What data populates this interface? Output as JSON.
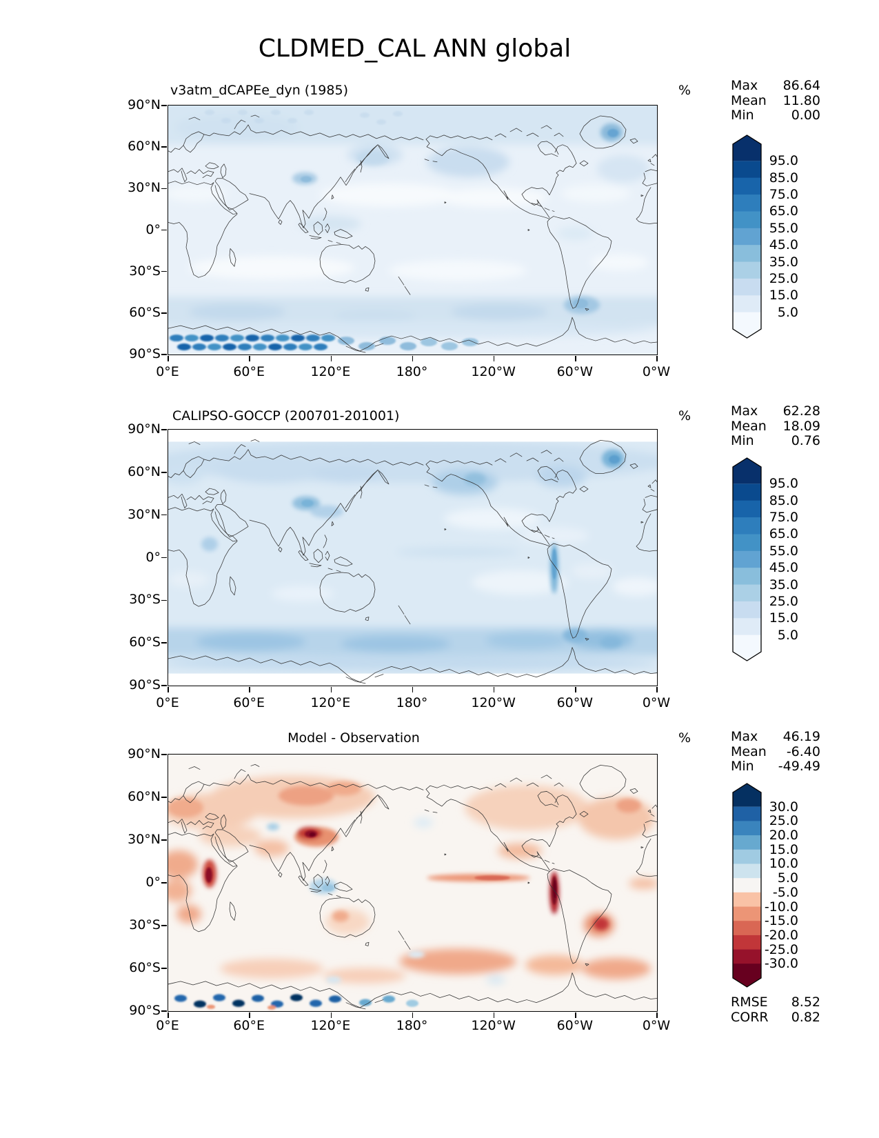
{
  "figure": {
    "title": "CLDMED_CAL ANN global"
  },
  "axes": {
    "yticks": [
      "90°N",
      "60°N",
      "30°N",
      "0°",
      "30°S",
      "60°S",
      "90°S"
    ],
    "xticks": [
      "0°E",
      "60°E",
      "120°E",
      "180°",
      "120°W",
      "60°W",
      "0°W"
    ]
  },
  "panels": [
    {
      "title": "v3atm_dCAPEe_dyn (1985)",
      "unit": "%",
      "stats": {
        "max_label": "Max",
        "max": "86.64",
        "mean_label": "Mean",
        "mean": "11.80",
        "min_label": "Min",
        "min": "0.00"
      }
    },
    {
      "title": "CALIPSO-GOCCP (200701-201001)",
      "unit": "%",
      "stats": {
        "max_label": "Max",
        "max": "62.28",
        "mean_label": "Mean",
        "mean": "18.09",
        "min_label": "Min",
        "min": "0.76"
      }
    },
    {
      "title": "Model - Observation",
      "unit": "%",
      "stats": {
        "max_label": "Max",
        "max": "46.19",
        "mean_label": "Mean",
        "mean": "-6.40",
        "min_label": "Min",
        "min": "-49.49"
      },
      "extra": {
        "rmse_label": "RMSE",
        "rmse": "8.52",
        "corr_label": "CORR",
        "corr": "0.82"
      }
    }
  ],
  "colorbars": [
    {
      "ticks": [
        "95.0",
        "85.0",
        "75.0",
        "65.0",
        "55.0",
        "45.0",
        "35.0",
        "25.0",
        "15.0",
        "5.0"
      ],
      "colors": [
        "#08306b",
        "#0a4a8e",
        "#1864aa",
        "#2e7ebc",
        "#4292c6",
        "#61a3d2",
        "#89bedc",
        "#abd0e6",
        "#c8dcf0",
        "#dfebf7",
        "#f4f9fe"
      ]
    },
    {
      "ticks": [
        "95.0",
        "85.0",
        "75.0",
        "65.0",
        "55.0",
        "45.0",
        "35.0",
        "25.0",
        "15.0",
        "5.0"
      ],
      "colors": [
        "#08306b",
        "#0a4a8e",
        "#1864aa",
        "#2e7ebc",
        "#4292c6",
        "#61a3d2",
        "#89bedc",
        "#abd0e6",
        "#c8dcf0",
        "#dfebf7",
        "#f4f9fe"
      ]
    },
    {
      "ticks": [
        "30.0",
        "25.0",
        "20.0",
        "15.0",
        "10.0",
        "5.0",
        "-5.0",
        "-10.0",
        "-15.0",
        "-20.0",
        "-25.0",
        "-30.0"
      ],
      "colors": [
        "#053061",
        "#1f61a5",
        "#3a84bd",
        "#67a9cf",
        "#a0cbe2",
        "#cde3ee",
        "#f7f5f3",
        "#f9c2a6",
        "#ec9576",
        "#d96754",
        "#c13639",
        "#96122b",
        "#67001f"
      ]
    }
  ],
  "chart_data": {
    "type": "heatmap",
    "subtype": "filled-contour global latitude-longitude maps (3 panels)",
    "title": "CLDMED_CAL ANN global",
    "units": "%",
    "lat_ticks": [
      "90°N",
      "60°N",
      "30°N",
      "0°",
      "30°S",
      "60°S",
      "90°S"
    ],
    "lon_ticks": [
      "0°E",
      "60°E",
      "120°E",
      "180°",
      "120°W",
      "60°W",
      "0°W"
    ],
    "panels": [
      {
        "name": "v3atm_dCAPEe_dyn (1985)",
        "role": "model",
        "colormap": "Blues",
        "contour_levels": [
          5,
          15,
          25,
          35,
          45,
          55,
          65,
          75,
          85,
          95
        ],
        "stats": {
          "max": 86.64,
          "mean": 11.8,
          "min": 0.0
        },
        "features": "light blue cloud fraction over most oceans; whiter subtropics; darker blue spots over Greenland, Tibet, Patagonia; speckled dark-blue pattern over East Antarctica"
      },
      {
        "name": "CALIPSO-GOCCP (200701-201001)",
        "role": "observation",
        "colormap": "Blues",
        "contour_levels": [
          5,
          15,
          25,
          35,
          45,
          55,
          65,
          75,
          85,
          95
        ],
        "stats": {
          "max": 62.28,
          "mean": 18.09,
          "min": 0.76
        },
        "features": "smooth moderate cloud fraction; strong Southern-Ocean band near 60S; darker Greenland, Tibet, Gulf of Alaska and narrow Andes stripe; no data poleward of ~82°"
      },
      {
        "name": "Model - Observation",
        "role": "difference",
        "colormap": "RdBu",
        "contour_levels": [
          -30,
          -25,
          -20,
          -15,
          -10,
          -5,
          5,
          10,
          15,
          20,
          25,
          30
        ],
        "stats": {
          "max": 46.19,
          "mean": -6.4,
          "min": -49.49,
          "rmse": 8.52,
          "corr": 0.82
        },
        "features": "widespread negative (red/orange) bias, deepest over Tibet/China, East Africa, Andes and Brazil; red equatorial east-Pacific band; small positive (blue) patches over Indonesia and speckled dark-blue over East Antarctica"
      }
    ]
  }
}
